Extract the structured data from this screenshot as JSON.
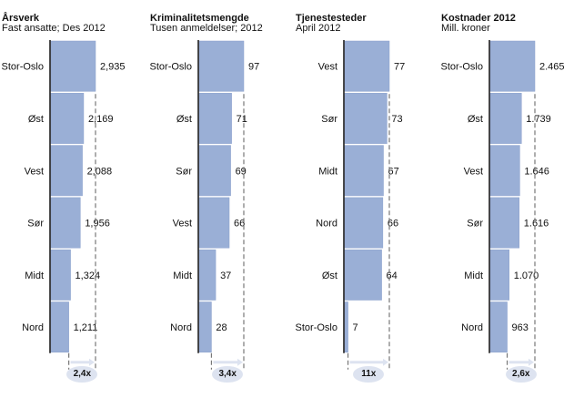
{
  "colors": {
    "bar": "#9aafd6",
    "bar_edge": "#8aa0cc",
    "axis": "#111111",
    "dashed": "#777777",
    "arrow_badge": "#dde3f0"
  },
  "chart_data": [
    {
      "type": "bar",
      "orientation": "horizontal",
      "title": "Årsverk",
      "subtitle": "Fast ansatte; Des 2012",
      "categories": [
        "Stor-Oslo",
        "Øst",
        "Vest",
        "Sør",
        "Midt",
        "Nord"
      ],
      "values": [
        2935,
        2169,
        2088,
        1956,
        1324,
        1211
      ],
      "value_labels": [
        "2,935",
        "2,169",
        "2,088",
        "1,956",
        "1,324",
        "1,211"
      ],
      "ratio_label": "2,4x"
    },
    {
      "type": "bar",
      "orientation": "horizontal",
      "title": "Kriminalitetsmengde",
      "subtitle": "Tusen anmeldelser; 2012",
      "categories": [
        "Stor-Oslo",
        "Øst",
        "Sør",
        "Vest",
        "Midt",
        "Nord"
      ],
      "values": [
        97,
        71,
        69,
        66,
        37,
        28
      ],
      "value_labels": [
        "97",
        "71",
        "69",
        "66",
        "37",
        "28"
      ],
      "ratio_label": "3,4x"
    },
    {
      "type": "bar",
      "orientation": "horizontal",
      "title": "Tjenestesteder",
      "subtitle": "April 2012",
      "categories": [
        "Vest",
        "Sør",
        "Midt",
        "Nord",
        "Øst",
        "Stor-Oslo"
      ],
      "values": [
        77,
        73,
        67,
        66,
        64,
        7
      ],
      "value_labels": [
        "77",
        "73",
        "67",
        "66",
        "64",
        "7"
      ],
      "ratio_label": "11x"
    },
    {
      "type": "bar",
      "orientation": "horizontal",
      "title": "Kostnader 2012",
      "subtitle": "Mill. kroner",
      "categories": [
        "Stor-Oslo",
        "Øst",
        "Vest",
        "Sør",
        "Midt",
        "Nord"
      ],
      "values": [
        2465,
        1739,
        1646,
        1616,
        1070,
        963
      ],
      "value_labels": [
        "2.465",
        "1.739",
        "1.646",
        "1.616",
        "1.070",
        "963"
      ],
      "ratio_label": "2,6x"
    }
  ]
}
